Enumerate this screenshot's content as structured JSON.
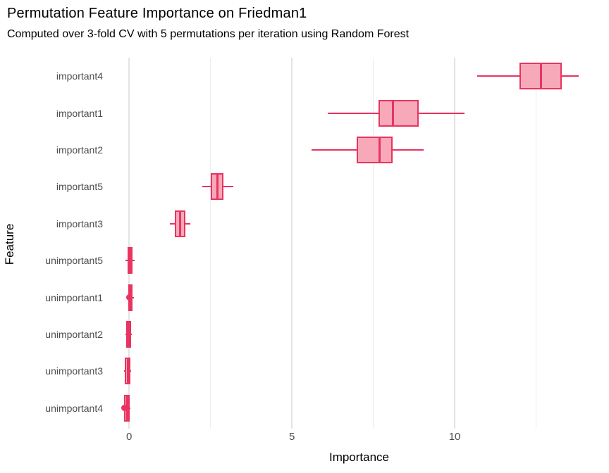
{
  "chart_data": {
    "type": "boxplot",
    "orientation": "horizontal",
    "title": "Permutation Feature Importance on Friedman1",
    "subtitle": "Computed over 3-fold CV with 5 permutations per iteration using Random Forest",
    "xlabel": "Importance",
    "ylabel": "Feature",
    "x_ticks": [
      0,
      5,
      10
    ],
    "x_gridlines_major": [
      0,
      5,
      10
    ],
    "x_gridlines_minor": [
      2.5,
      7.5,
      12.5
    ],
    "xlim": [
      -0.61,
      14.74
    ],
    "grid": "vertical-only",
    "legend": "none",
    "colors": {
      "accent": "#E8345F",
      "box_fill": "#F7A9BA",
      "gridline_major": "#E4E4E4",
      "gridline_minor": "#EDEDED",
      "tick_label": "#4D4D4D",
      "text": "#000000",
      "background": "#FFFFFF"
    },
    "series": [
      {
        "feature": "important4",
        "whisker_low": 10.7,
        "q1": 12.0,
        "median": 12.65,
        "q3": 13.3,
        "whisker_high": 13.8,
        "outliers": []
      },
      {
        "feature": "important1",
        "whisker_low": 6.1,
        "q1": 7.65,
        "median": 8.1,
        "q3": 8.9,
        "whisker_high": 10.3,
        "outliers": []
      },
      {
        "feature": "important2",
        "whisker_low": 5.6,
        "q1": 7.0,
        "median": 7.7,
        "q3": 8.1,
        "whisker_high": 9.05,
        "outliers": []
      },
      {
        "feature": "important5",
        "whisker_low": 2.25,
        "q1": 2.5,
        "median": 2.72,
        "q3": 2.9,
        "whisker_high": 3.2,
        "outliers": []
      },
      {
        "feature": "important3",
        "whisker_low": 1.25,
        "q1": 1.4,
        "median": 1.56,
        "q3": 1.72,
        "whisker_high": 1.87,
        "outliers": []
      },
      {
        "feature": "unimportant5",
        "whisker_low": -0.12,
        "q1": -0.04,
        "median": 0.03,
        "q3": 0.11,
        "whisker_high": 0.16,
        "outliers": []
      },
      {
        "feature": "unimportant1",
        "whisker_low": -0.05,
        "q1": -0.03,
        "median": 0.04,
        "q3": 0.11,
        "whisker_high": 0.15,
        "outliers": [
          0.0
        ]
      },
      {
        "feature": "unimportant2",
        "whisker_low": -0.12,
        "q1": -0.09,
        "median": -0.01,
        "q3": 0.06,
        "whisker_high": 0.09,
        "outliers": []
      },
      {
        "feature": "unimportant3",
        "whisker_low": -0.16,
        "q1": -0.14,
        "median": -0.04,
        "q3": 0.04,
        "whisker_high": 0.07,
        "outliers": []
      },
      {
        "feature": "unimportant4",
        "whisker_low": -0.17,
        "q1": -0.15,
        "median": -0.06,
        "q3": 0.01,
        "whisker_high": 0.03,
        "outliers": [
          -0.14
        ]
      }
    ]
  }
}
